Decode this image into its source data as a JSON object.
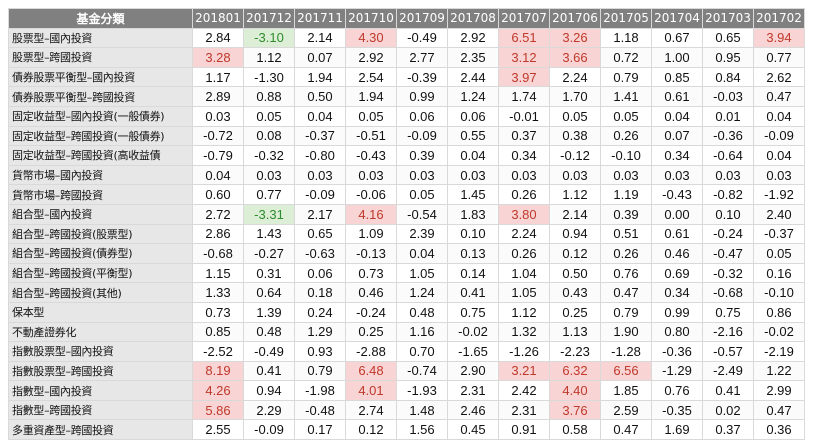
{
  "table": {
    "header_category": "基金分類",
    "periods": [
      "201801",
      "201712",
      "201711",
      "201710",
      "201709",
      "201708",
      "201707",
      "201706",
      "201705",
      "201704",
      "201703",
      "201702"
    ],
    "highlight_colors": {
      "high": "#f8d4d4",
      "high_text": "#c0392b",
      "low": "#dcefd6",
      "low_text": "#2e8b2e"
    },
    "rows": [
      {
        "category": "股票型–國內投資",
        "values": [
          "2.84",
          "-3.10",
          "2.14",
          "4.30",
          "-0.49",
          "2.92",
          "6.51",
          "3.26",
          "1.18",
          "0.67",
          "0.65",
          "3.94"
        ],
        "flags": [
          "",
          "lo",
          "",
          "hi",
          "",
          "",
          "hi",
          "hi",
          "",
          "",
          "",
          "hi"
        ]
      },
      {
        "category": "股票型–跨國投資",
        "values": [
          "3.28",
          "1.12",
          "0.07",
          "2.92",
          "2.77",
          "2.35",
          "3.12",
          "3.66",
          "0.72",
          "1.00",
          "0.95",
          "0.77"
        ],
        "flags": [
          "hi",
          "",
          "",
          "",
          "",
          "",
          "hi",
          "hi",
          "",
          "",
          "",
          ""
        ]
      },
      {
        "category": "債券股票平衡型–國內投資",
        "values": [
          "1.17",
          "-1.30",
          "1.94",
          "2.54",
          "-0.39",
          "2.44",
          "3.97",
          "2.24",
          "0.79",
          "0.85",
          "0.84",
          "2.62"
        ],
        "flags": [
          "",
          "",
          "",
          "",
          "",
          "",
          "hi",
          "",
          "",
          "",
          "",
          ""
        ]
      },
      {
        "category": "債券股票平衡型–跨國投資",
        "values": [
          "2.89",
          "0.88",
          "0.50",
          "1.94",
          "0.99",
          "1.24",
          "1.74",
          "1.70",
          "1.41",
          "0.61",
          "-0.03",
          "0.47"
        ],
        "flags": [
          "",
          "",
          "",
          "",
          "",
          "",
          "",
          "",
          "",
          "",
          "",
          ""
        ]
      },
      {
        "category": "固定收益型–國內投資(一般債券)",
        "values": [
          "0.03",
          "0.05",
          "0.04",
          "0.05",
          "0.06",
          "0.06",
          "-0.01",
          "0.05",
          "0.05",
          "0.04",
          "0.01",
          "0.04"
        ],
        "flags": [
          "",
          "",
          "",
          "",
          "",
          "",
          "",
          "",
          "",
          "",
          "",
          ""
        ]
      },
      {
        "category": "固定收益型–跨國投資(一般債券)",
        "values": [
          "-0.72",
          "0.08",
          "-0.37",
          "-0.51",
          "-0.09",
          "0.55",
          "0.37",
          "0.38",
          "0.26",
          "0.07",
          "-0.36",
          "-0.09"
        ],
        "flags": [
          "",
          "",
          "",
          "",
          "",
          "",
          "",
          "",
          "",
          "",
          "",
          ""
        ]
      },
      {
        "category": "固定收益型–跨國投資(高收益債",
        "values": [
          "-0.79",
          "-0.32",
          "-0.80",
          "-0.43",
          "0.39",
          "0.04",
          "0.34",
          "-0.12",
          "-0.10",
          "0.34",
          "-0.64",
          "0.04"
        ],
        "flags": [
          "",
          "",
          "",
          "",
          "",
          "",
          "",
          "",
          "",
          "",
          "",
          ""
        ]
      },
      {
        "category": "貨幣市場–國內投資",
        "values": [
          "0.04",
          "0.03",
          "0.03",
          "0.03",
          "0.03",
          "0.03",
          "0.03",
          "0.03",
          "0.03",
          "0.03",
          "0.03",
          "0.03"
        ],
        "flags": [
          "",
          "",
          "",
          "",
          "",
          "",
          "",
          "",
          "",
          "",
          "",
          ""
        ]
      },
      {
        "category": "貨幣市場–跨國投資",
        "values": [
          "0.60",
          "0.77",
          "-0.09",
          "-0.06",
          "0.05",
          "1.45",
          "0.26",
          "1.12",
          "1.19",
          "-0.43",
          "-0.82",
          "-1.92"
        ],
        "flags": [
          "",
          "",
          "",
          "",
          "",
          "",
          "",
          "",
          "",
          "",
          "",
          ""
        ]
      },
      {
        "category": "組合型–國內投資",
        "values": [
          "2.72",
          "-3.31",
          "2.17",
          "4.16",
          "-0.54",
          "1.83",
          "3.80",
          "2.14",
          "0.39",
          "0.00",
          "0.10",
          "2.40"
        ],
        "flags": [
          "",
          "lo",
          "",
          "hi",
          "",
          "",
          "hi",
          "",
          "",
          "",
          "",
          ""
        ]
      },
      {
        "category": "組合型–跨國投資(股票型)",
        "values": [
          "2.86",
          "1.43",
          "0.65",
          "1.09",
          "2.39",
          "0.10",
          "2.24",
          "0.94",
          "0.51",
          "0.61",
          "-0.24",
          "-0.37"
        ],
        "flags": [
          "",
          "",
          "",
          "",
          "",
          "",
          "",
          "",
          "",
          "",
          "",
          ""
        ]
      },
      {
        "category": "組合型–跨國投資(債券型)",
        "values": [
          "-0.68",
          "-0.27",
          "-0.63",
          "-0.13",
          "0.04",
          "0.13",
          "0.26",
          "0.12",
          "0.26",
          "0.46",
          "-0.47",
          "0.05"
        ],
        "flags": [
          "",
          "",
          "",
          "",
          "",
          "",
          "",
          "",
          "",
          "",
          "",
          ""
        ]
      },
      {
        "category": "組合型–跨國投資(平衡型)",
        "values": [
          "1.15",
          "0.31",
          "0.06",
          "0.73",
          "1.05",
          "0.14",
          "1.04",
          "0.50",
          "0.76",
          "0.69",
          "-0.32",
          "0.16"
        ],
        "flags": [
          "",
          "",
          "",
          "",
          "",
          "",
          "",
          "",
          "",
          "",
          "",
          ""
        ]
      },
      {
        "category": "組合型–跨國投資(其他)",
        "values": [
          "1.33",
          "0.64",
          "0.18",
          "0.46",
          "1.24",
          "0.41",
          "1.05",
          "0.43",
          "0.47",
          "0.34",
          "-0.68",
          "-0.10"
        ],
        "flags": [
          "",
          "",
          "",
          "",
          "",
          "",
          "",
          "",
          "",
          "",
          "",
          ""
        ]
      },
      {
        "category": "保本型",
        "values": [
          "0.73",
          "1.39",
          "0.24",
          "-0.24",
          "0.48",
          "0.75",
          "1.12",
          "0.25",
          "0.79",
          "0.99",
          "0.75",
          "0.86"
        ],
        "flags": [
          "",
          "",
          "",
          "",
          "",
          "",
          "",
          "",
          "",
          "",
          "",
          ""
        ]
      },
      {
        "category": "不動產證券化",
        "values": [
          "0.85",
          "0.48",
          "1.29",
          "0.25",
          "1.16",
          "-0.02",
          "1.32",
          "1.13",
          "1.90",
          "0.80",
          "-2.16",
          "-0.02"
        ],
        "flags": [
          "",
          "",
          "",
          "",
          "",
          "",
          "",
          "",
          "",
          "",
          "",
          ""
        ]
      },
      {
        "category": "指數股票型–國內投資",
        "values": [
          "-2.52",
          "-0.49",
          "0.93",
          "-2.88",
          "0.70",
          "-1.65",
          "-1.26",
          "-2.23",
          "-1.28",
          "-0.36",
          "-0.57",
          "-2.19"
        ],
        "flags": [
          "",
          "",
          "",
          "",
          "",
          "",
          "",
          "",
          "",
          "",
          "",
          ""
        ]
      },
      {
        "category": "指數股票型–跨國投資",
        "values": [
          "8.19",
          "0.41",
          "0.79",
          "6.48",
          "-0.74",
          "2.90",
          "3.21",
          "6.32",
          "6.56",
          "-1.29",
          "-2.49",
          "1.22"
        ],
        "flags": [
          "hi",
          "",
          "",
          "hi",
          "",
          "",
          "hi",
          "hi",
          "hi",
          "",
          "",
          ""
        ]
      },
      {
        "category": "指數型–國內投資",
        "values": [
          "4.26",
          "0.94",
          "-1.98",
          "4.01",
          "-1.93",
          "2.31",
          "2.42",
          "4.40",
          "1.85",
          "0.76",
          "0.41",
          "2.99"
        ],
        "flags": [
          "hi",
          "",
          "",
          "hi",
          "",
          "",
          "",
          "hi",
          "",
          "",
          "",
          ""
        ]
      },
      {
        "category": "指數型–跨國投資",
        "values": [
          "5.86",
          "2.29",
          "-0.48",
          "2.74",
          "1.48",
          "2.46",
          "2.31",
          "3.76",
          "2.59",
          "-0.35",
          "0.02",
          "0.47"
        ],
        "flags": [
          "hi",
          "",
          "",
          "",
          "",
          "",
          "",
          "hi",
          "",
          "",
          "",
          ""
        ]
      },
      {
        "category": "多重資產型–跨國投資",
        "values": [
          "2.55",
          "-0.09",
          "0.17",
          "0.12",
          "1.56",
          "0.45",
          "0.91",
          "0.58",
          "0.47",
          "1.69",
          "0.37",
          "0.36"
        ],
        "flags": [
          "",
          "",
          "",
          "",
          "",
          "",
          "",
          "",
          "",
          "",
          "",
          ""
        ]
      }
    ]
  }
}
